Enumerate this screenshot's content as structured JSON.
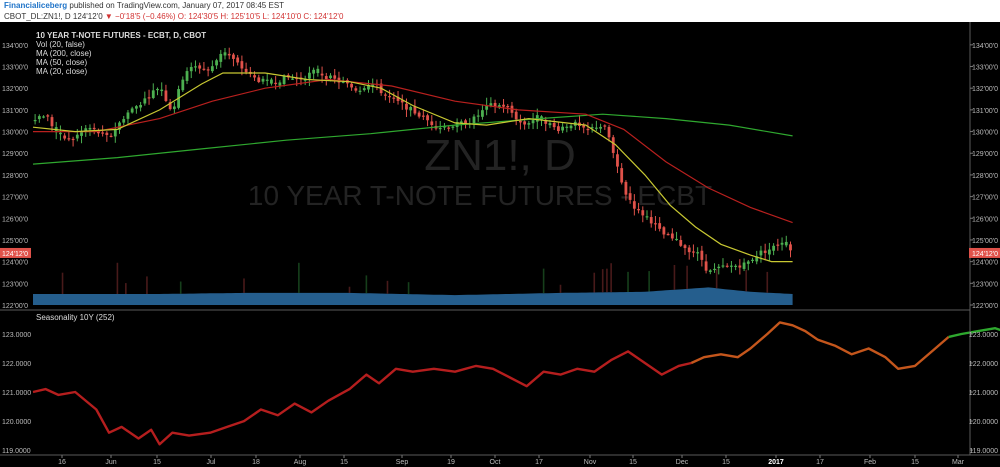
{
  "header": {
    "publisher": "Financialiceberg",
    "published_text": "published on TradingView.com, January 07, 2017 08:45 EST",
    "symbol": "CBOT_DL:ZN1!, D",
    "price": "124'12'0",
    "change": "▼ −0'18'5 (−0.46%)",
    "ohlc": "O: 124'30'5  H: 125'10'5  L: 124'10'0  C: 124'12'0"
  },
  "main_pane": {
    "title": "10 YEAR T-NOTE FUTURES - ECBT, D, CBOT",
    "indicators": [
      "Vol (20, false)",
      "MA (200, close)",
      "MA (50, close)",
      "MA (20, close)"
    ],
    "watermark_symbol": "ZN1!, D",
    "watermark_name": "10 YEAR T-NOTE FUTURES - ECBT",
    "price_label": "124'12'0",
    "y_ticks": [
      "134'00'0",
      "133'00'0",
      "132'00'0",
      "131'00'0",
      "130'00'0",
      "129'00'0",
      "128'00'0",
      "127'00'0",
      "126'00'0",
      "125'00'0",
      "124'00'0",
      "123'00'0",
      "122'00'0"
    ]
  },
  "seasonality_pane": {
    "title": "Seasonality 10Y (252)",
    "y_ticks": [
      "123.0000",
      "122.0000",
      "121.0000",
      "120.0000",
      "119.0000"
    ]
  },
  "x_axis": [
    "16",
    "Jun",
    "15",
    "Jul",
    "18",
    "Aug",
    "15",
    "Sep",
    "19",
    "Oct",
    "17",
    "Nov",
    "15",
    "Dec",
    "15",
    "2017",
    "17",
    "Feb",
    "15",
    "Mar"
  ],
  "colors": {
    "background": "#000000",
    "up_candle": "#4caf50",
    "down_candle": "#e0524a",
    "ma20": "#c8c832",
    "ma50": "#b8201e",
    "ma200": "#2fa82f",
    "volume": "#2b6ea6",
    "price_label_bg": "#e0524a",
    "season_red": "#b51e1e",
    "season_orange": "#c4561c",
    "season_green": "#2ea82e"
  },
  "chart_data": [
    {
      "type": "candlestick",
      "title": "10 YEAR T-NOTE FUTURES - ECBT, D, CBOT",
      "y_unit": "price (32nds)",
      "ylim": [
        122,
        134.5
      ],
      "close_path": [
        [
          0,
          130.6
        ],
        [
          6,
          130.8
        ],
        [
          12,
          129.8
        ],
        [
          18,
          129.6
        ],
        [
          26,
          130.2
        ],
        [
          36,
          129.7
        ],
        [
          44,
          130.8
        ],
        [
          52,
          131.4
        ],
        [
          60,
          132.1
        ],
        [
          66,
          130.9
        ],
        [
          72,
          132.8
        ],
        [
          78,
          133.0
        ],
        [
          84,
          132.8
        ],
        [
          90,
          133.8
        ],
        [
          96,
          133.2
        ],
        [
          104,
          132.5
        ],
        [
          112,
          132.2
        ],
        [
          120,
          132.5
        ],
        [
          126,
          132.4
        ],
        [
          134,
          132.8
        ],
        [
          140,
          132.5
        ],
        [
          148,
          132.2
        ],
        [
          154,
          131.9
        ],
        [
          160,
          132.3
        ],
        [
          168,
          131.6
        ],
        [
          176,
          131.2
        ],
        [
          184,
          130.7
        ],
        [
          192,
          130.2
        ],
        [
          200,
          130.3
        ],
        [
          208,
          130.5
        ],
        [
          216,
          131.2
        ],
        [
          224,
          131.2
        ],
        [
          232,
          130.3
        ],
        [
          240,
          130.7
        ],
        [
          248,
          130.1
        ],
        [
          256,
          130.4
        ],
        [
          262,
          130.0
        ],
        [
          268,
          130.3
        ],
        [
          272,
          130.1
        ],
        [
          276,
          128.6
        ],
        [
          280,
          127.3
        ],
        [
          286,
          126.4
        ],
        [
          292,
          126.0
        ],
        [
          298,
          125.3
        ],
        [
          304,
          125.0
        ],
        [
          310,
          124.6
        ],
        [
          316,
          124.3
        ],
        [
          320,
          123.5
        ],
        [
          326,
          123.7
        ],
        [
          332,
          123.8
        ],
        [
          338,
          123.9
        ],
        [
          344,
          124.4
        ],
        [
          350,
          124.6
        ],
        [
          356,
          125.0
        ],
        [
          360,
          124.4
        ]
      ],
      "up_days": [
        0,
        12,
        26,
        44,
        52,
        60,
        72,
        90,
        112,
        134,
        160,
        200,
        208,
        216,
        240,
        256,
        268,
        326,
        332,
        338,
        344,
        350,
        356
      ],
      "ma20": [
        [
          0,
          130.2
        ],
        [
          20,
          130.0
        ],
        [
          40,
          130.1
        ],
        [
          60,
          131.0
        ],
        [
          80,
          132.2
        ],
        [
          90,
          132.7
        ],
        [
          110,
          132.7
        ],
        [
          130,
          132.4
        ],
        [
          150,
          132.3
        ],
        [
          165,
          132.0
        ],
        [
          180,
          131.2
        ],
        [
          200,
          130.4
        ],
        [
          215,
          130.3
        ],
        [
          235,
          130.6
        ],
        [
          262,
          130.3
        ],
        [
          276,
          129.4
        ],
        [
          290,
          128.0
        ],
        [
          302,
          126.6
        ],
        [
          314,
          125.6
        ],
        [
          326,
          124.8
        ],
        [
          340,
          124.3
        ],
        [
          350,
          124.0
        ],
        [
          360,
          124.0
        ]
      ],
      "ma50": [
        [
          0,
          130.0
        ],
        [
          30,
          130.0
        ],
        [
          60,
          130.6
        ],
        [
          85,
          131.4
        ],
        [
          110,
          132.0
        ],
        [
          140,
          132.4
        ],
        [
          170,
          132.1
        ],
        [
          200,
          131.4
        ],
        [
          230,
          131.0
        ],
        [
          262,
          130.8
        ],
        [
          280,
          130.1
        ],
        [
          300,
          128.6
        ],
        [
          320,
          127.4
        ],
        [
          340,
          126.5
        ],
        [
          360,
          125.8
        ]
      ],
      "ma200": [
        [
          0,
          128.5
        ],
        [
          40,
          128.8
        ],
        [
          80,
          129.2
        ],
        [
          120,
          129.6
        ],
        [
          160,
          129.9
        ],
        [
          200,
          130.3
        ],
        [
          240,
          130.6
        ],
        [
          270,
          130.8
        ],
        [
          300,
          130.6
        ],
        [
          330,
          130.3
        ],
        [
          360,
          129.8
        ]
      ],
      "volume_relative": [
        [
          0,
          0.5
        ],
        [
          60,
          0.5
        ],
        [
          100,
          0.55
        ],
        [
          150,
          0.55
        ],
        [
          200,
          0.45
        ],
        [
          250,
          0.55
        ],
        [
          290,
          0.6
        ],
        [
          320,
          0.8
        ],
        [
          340,
          0.6
        ],
        [
          360,
          0.5
        ]
      ]
    },
    {
      "type": "line",
      "title": "Seasonality 10Y (252)",
      "ylim": [
        118.9,
        123.55
      ],
      "series": [
        {
          "segment": "red",
          "points": [
            [
              0,
              121.0
            ],
            [
              6,
              121.1
            ],
            [
              12,
              120.9
            ],
            [
              20,
              121.0
            ],
            [
              30,
              120.4
            ],
            [
              36,
              119.6
            ],
            [
              42,
              119.8
            ],
            [
              50,
              119.4
            ],
            [
              56,
              119.7
            ],
            [
              60,
              119.2
            ],
            [
              66,
              119.6
            ],
            [
              74,
              119.5
            ],
            [
              84,
              119.6
            ],
            [
              92,
              119.8
            ],
            [
              100,
              120.0
            ],
            [
              108,
              120.4
            ],
            [
              116,
              120.2
            ],
            [
              124,
              120.6
            ],
            [
              132,
              120.3
            ],
            [
              140,
              120.7
            ],
            [
              150,
              121.1
            ],
            [
              158,
              121.6
            ],
            [
              164,
              121.3
            ],
            [
              172,
              121.8
            ],
            [
              180,
              121.7
            ],
            [
              190,
              121.8
            ],
            [
              200,
              121.7
            ],
            [
              210,
              121.9
            ],
            [
              218,
              121.8
            ],
            [
              226,
              121.5
            ],
            [
              234,
              121.2
            ],
            [
              242,
              121.7
            ],
            [
              250,
              121.6
            ],
            [
              258,
              121.8
            ],
            [
              266,
              121.7
            ],
            [
              274,
              122.1
            ],
            [
              282,
              122.4
            ],
            [
              290,
              122.0
            ],
            [
              298,
              121.6
            ],
            [
              306,
              121.9
            ],
            [
              312,
              122.0
            ]
          ]
        },
        {
          "segment": "orange",
          "points": [
            [
              312,
              122.0
            ],
            [
              318,
              122.2
            ],
            [
              326,
              122.3
            ],
            [
              334,
              122.2
            ],
            [
              340,
              122.5
            ],
            [
              348,
              123.0
            ],
            [
              354,
              123.4
            ],
            [
              360,
              123.3
            ],
            [
              366,
              123.1
            ],
            [
              372,
              122.8
            ],
            [
              380,
              122.6
            ],
            [
              388,
              122.3
            ],
            [
              396,
              122.5
            ],
            [
              404,
              122.2
            ],
            [
              410,
              121.8
            ],
            [
              418,
              121.9
            ],
            [
              426,
              122.4
            ],
            [
              434,
              122.9
            ]
          ]
        },
        {
          "segment": "green",
          "points": [
            [
              434,
              122.9
            ],
            [
              440,
              123.0
            ],
            [
              448,
              123.1
            ],
            [
              456,
              123.2
            ],
            [
              464,
              123.0
            ],
            [
              472,
              123.1
            ],
            [
              480,
              123.3
            ],
            [
              488,
              123.2
            ],
            [
              496,
              123.4
            ],
            [
              504,
              123.3
            ],
            [
              510,
              123.1
            ],
            [
              516,
              123.3
            ],
            [
              524,
              122.8
            ],
            [
              532,
              122.9
            ],
            [
              540,
              123.2
            ],
            [
              548,
              122.8
            ],
            [
              556,
              122.6
            ],
            [
              564,
              122.3
            ]
          ]
        }
      ]
    }
  ]
}
